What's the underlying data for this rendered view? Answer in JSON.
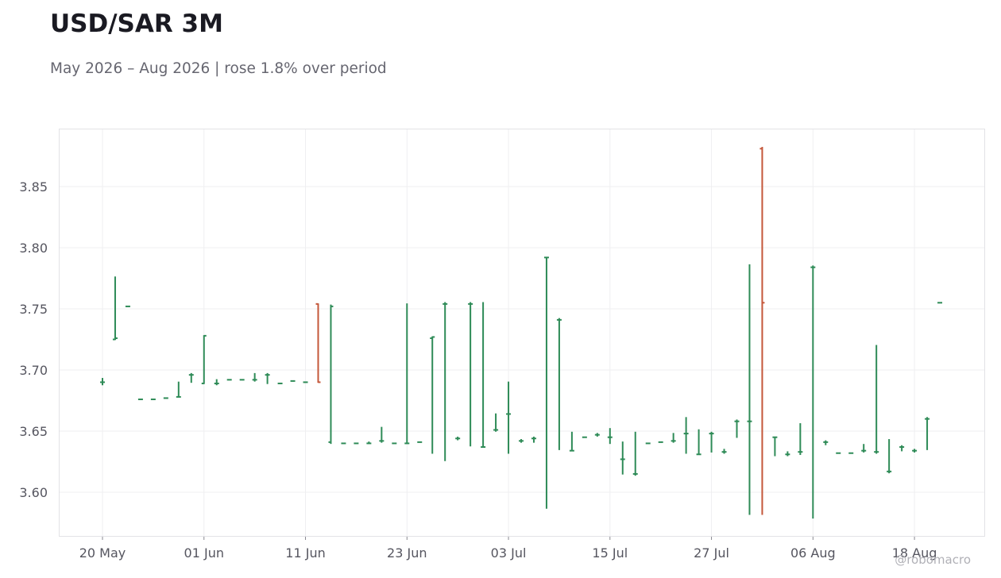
{
  "chart_data": {
    "type": "ohlc",
    "title": "USD/SAR 3M",
    "subtitle": "May 2026 – Aug 2026 | rose 1.8% over period",
    "watermark": "@robomacro",
    "up_color": "#2e8b57",
    "down_color": "#c4573a",
    "grid": true,
    "categories": [
      "20 May",
      null,
      null,
      null,
      null,
      null,
      null,
      null,
      "01 Jun",
      null,
      null,
      null,
      null,
      null,
      null,
      null,
      "11 Jun",
      null,
      null,
      null,
      null,
      null,
      null,
      null,
      "23 Jun",
      null,
      null,
      null,
      null,
      null,
      null,
      null,
      "03 Jul",
      null,
      null,
      null,
      null,
      null,
      null,
      null,
      "15 Jul",
      null,
      null,
      null,
      null,
      null,
      null,
      null,
      "27 Jul",
      null,
      null,
      null,
      null,
      null,
      null,
      null,
      "06 Aug",
      null,
      null,
      null,
      null,
      null,
      null,
      null,
      "18 Aug",
      null,
      null
    ],
    "open": [
      3.69,
      3.725,
      3.752,
      3.676,
      3.676,
      3.677,
      3.678,
      3.696,
      3.689,
      3.689,
      3.692,
      3.692,
      3.692,
      3.696,
      3.689,
      3.691,
      3.69,
      3.754,
      3.641,
      3.64,
      3.64,
      3.64,
      3.642,
      3.64,
      3.64,
      3.641,
      3.726,
      3.754,
      3.644,
      3.754,
      3.637,
      3.651,
      3.664,
      3.642,
      3.644,
      3.792,
      3.741,
      3.634,
      3.645,
      3.647,
      3.645,
      3.627,
      3.615,
      3.64,
      3.641,
      3.642,
      3.648,
      3.631,
      3.648,
      3.633,
      3.658,
      3.658,
      3.881,
      3.645,
      3.631,
      3.633,
      3.784,
      3.641,
      3.632,
      3.632,
      3.634,
      3.633,
      3.617,
      3.637,
      3.634,
      3.66,
      3.755
    ],
    "high": [
      3.693,
      3.776,
      3.752,
      3.676,
      3.676,
      3.677,
      3.69,
      3.697,
      3.728,
      3.692,
      3.692,
      3.692,
      3.697,
      3.697,
      3.689,
      3.691,
      3.69,
      3.754,
      3.753,
      3.64,
      3.64,
      3.641,
      3.653,
      3.64,
      3.754,
      3.641,
      3.727,
      3.755,
      3.645,
      3.755,
      3.755,
      3.664,
      3.69,
      3.643,
      3.645,
      3.792,
      3.742,
      3.649,
      3.645,
      3.648,
      3.652,
      3.641,
      3.649,
      3.64,
      3.641,
      3.648,
      3.661,
      3.651,
      3.649,
      3.635,
      3.659,
      3.786,
      3.882,
      3.645,
      3.633,
      3.656,
      3.785,
      3.642,
      3.632,
      3.632,
      3.639,
      3.72,
      3.643,
      3.638,
      3.635,
      3.661,
      3.755
    ],
    "low": [
      3.688,
      3.725,
      3.752,
      3.676,
      3.676,
      3.677,
      3.678,
      3.69,
      3.689,
      3.688,
      3.692,
      3.692,
      3.691,
      3.689,
      3.689,
      3.691,
      3.69,
      3.69,
      3.64,
      3.64,
      3.64,
      3.64,
      3.641,
      3.64,
      3.64,
      3.641,
      3.632,
      3.626,
      3.643,
      3.638,
      3.637,
      3.65,
      3.632,
      3.641,
      3.641,
      3.587,
      3.635,
      3.634,
      3.645,
      3.646,
      3.64,
      3.615,
      3.614,
      3.64,
      3.641,
      3.641,
      3.632,
      3.631,
      3.633,
      3.632,
      3.645,
      3.582,
      3.582,
      3.63,
      3.63,
      3.631,
      3.579,
      3.639,
      3.632,
      3.632,
      3.633,
      3.632,
      3.616,
      3.634,
      3.633,
      3.635,
      3.755
    ],
    "close": [
      3.69,
      3.726,
      3.752,
      3.676,
      3.676,
      3.677,
      3.678,
      3.696,
      3.728,
      3.689,
      3.692,
      3.692,
      3.692,
      3.696,
      3.689,
      3.691,
      3.69,
      3.69,
      3.752,
      3.64,
      3.64,
      3.64,
      3.642,
      3.64,
      3.64,
      3.641,
      3.727,
      3.754,
      3.644,
      3.754,
      3.637,
      3.651,
      3.664,
      3.642,
      3.644,
      3.792,
      3.741,
      3.634,
      3.645,
      3.647,
      3.645,
      3.627,
      3.615,
      3.64,
      3.641,
      3.642,
      3.648,
      3.631,
      3.648,
      3.633,
      3.658,
      3.658,
      3.755,
      3.645,
      3.631,
      3.633,
      3.784,
      3.641,
      3.632,
      3.632,
      3.634,
      3.633,
      3.617,
      3.637,
      3.634,
      3.66,
      3.755
    ],
    "ylim": [
      3.5643,
      3.8974
    ],
    "yticks": [
      {
        "value": 3.6,
        "label": "3.60"
      },
      3.65,
      {
        "value": 3.7,
        "label": "3.70"
      },
      3.75,
      {
        "value": 3.8,
        "label": "3.80"
      },
      3.85
    ]
  }
}
